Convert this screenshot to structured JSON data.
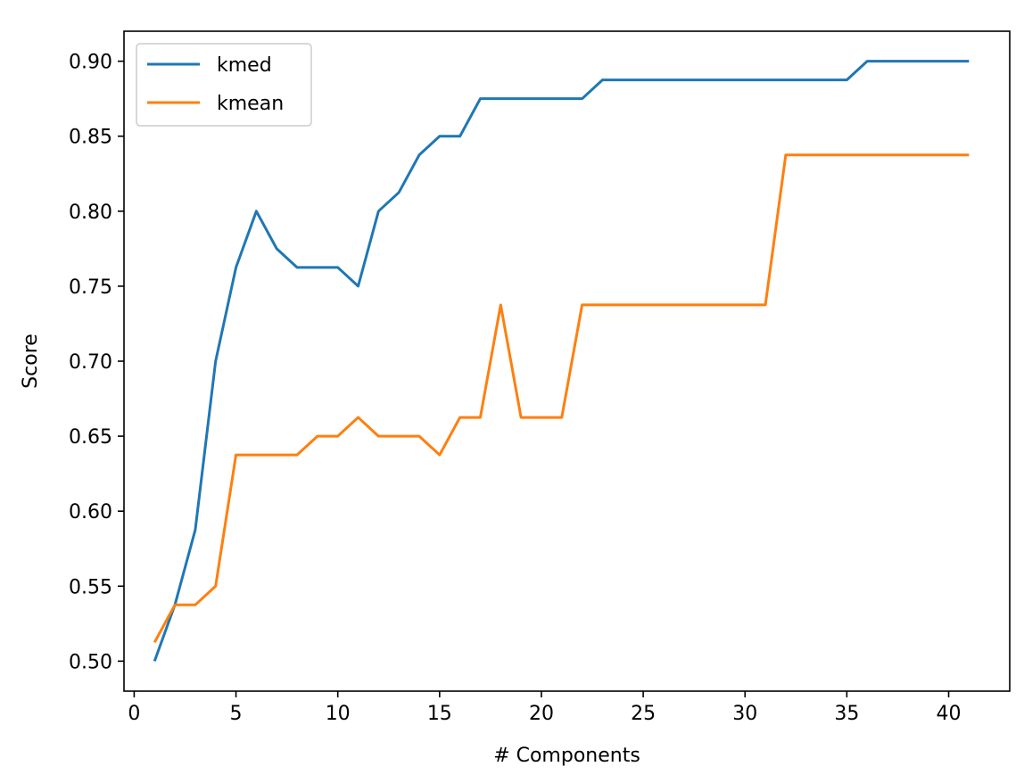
{
  "chart_data": {
    "type": "line",
    "xlabel": "# Components",
    "ylabel": "Score",
    "xlim": [
      -0.5,
      43
    ],
    "ylim": [
      0.48,
      0.92
    ],
    "xticks": [
      0,
      5,
      10,
      15,
      20,
      25,
      30,
      35,
      40
    ],
    "yticks": [
      0.5,
      0.55,
      0.6,
      0.65,
      0.7,
      0.75,
      0.8,
      0.85,
      0.9
    ],
    "grid": false,
    "legend_position": "top-left",
    "x": [
      1,
      2,
      3,
      4,
      5,
      6,
      7,
      8,
      9,
      10,
      11,
      12,
      13,
      14,
      15,
      16,
      17,
      18,
      19,
      20,
      21,
      22,
      23,
      24,
      25,
      26,
      27,
      28,
      29,
      30,
      31,
      32,
      33,
      34,
      35,
      36,
      37,
      38,
      39,
      40,
      41
    ],
    "series": [
      {
        "name": "kmed",
        "color": "#1f77b4",
        "values": [
          0.5,
          0.5375,
          0.5875,
          0.7,
          0.7625,
          0.8,
          0.775,
          0.7625,
          0.7625,
          0.7625,
          0.75,
          0.8,
          0.8125,
          0.8375,
          0.85,
          0.85,
          0.875,
          0.875,
          0.875,
          0.875,
          0.875,
          0.875,
          0.8875,
          0.8875,
          0.8875,
          0.8875,
          0.8875,
          0.8875,
          0.8875,
          0.8875,
          0.8875,
          0.8875,
          0.8875,
          0.8875,
          0.8875,
          0.9,
          0.9,
          0.9,
          0.9,
          0.9,
          0.9
        ]
      },
      {
        "name": "kmean",
        "color": "#ff7f0e",
        "values": [
          0.5125,
          0.5375,
          0.5375,
          0.55,
          0.6375,
          0.6375,
          0.6375,
          0.6375,
          0.65,
          0.65,
          0.6625,
          0.65,
          0.65,
          0.65,
          0.6375,
          0.6625,
          0.6625,
          0.7375,
          0.6625,
          0.6625,
          0.6625,
          0.7375,
          0.7375,
          0.7375,
          0.7375,
          0.7375,
          0.7375,
          0.7375,
          0.7375,
          0.7375,
          0.7375,
          0.8375,
          0.8375,
          0.8375,
          0.8375,
          0.8375,
          0.8375,
          0.8375,
          0.8375,
          0.8375,
          0.8375
        ]
      }
    ]
  }
}
